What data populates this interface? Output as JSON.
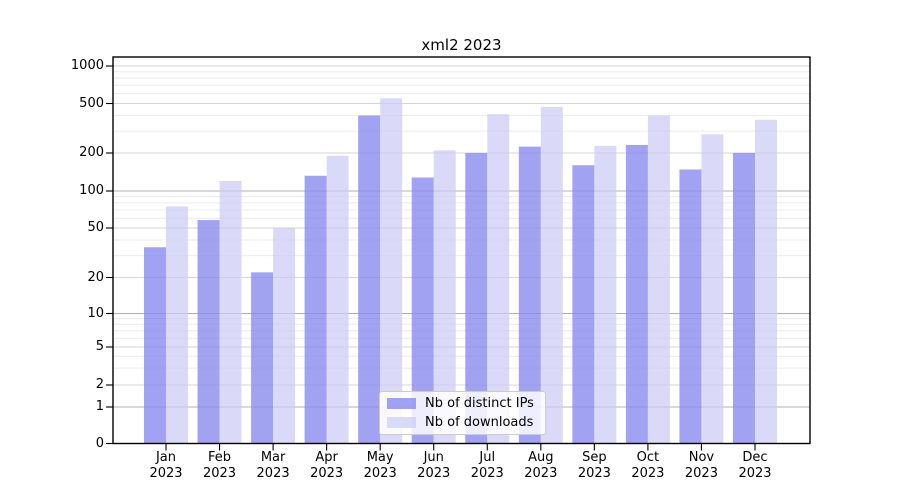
{
  "chart_data": {
    "type": "bar",
    "title": "xml2 2023",
    "categories": [
      "Jan",
      "Feb",
      "Mar",
      "Apr",
      "May",
      "Jun",
      "Jul",
      "Aug",
      "Sep",
      "Oct",
      "Nov",
      "Dec"
    ],
    "x_tick_second_line": "2023",
    "series": [
      {
        "name": "Nb of distinct IPs",
        "color": "#8888ee",
        "values": [
          35,
          58,
          22,
          132,
          400,
          128,
          200,
          225,
          160,
          232,
          148,
          200
        ]
      },
      {
        "name": "Nb of downloads",
        "color": "#ccccf5",
        "values": [
          75,
          120,
          50,
          190,
          550,
          210,
          410,
          470,
          228,
          400,
          283,
          370
        ]
      }
    ],
    "xlabel": "",
    "ylabel": "",
    "y_ticks": [
      1000,
      500,
      200,
      100,
      50,
      20,
      10,
      5,
      2,
      1,
      0
    ],
    "y_scale": "log (1-2-5 ticks), linear segment between 0 and 1",
    "ylim": [
      0,
      1100
    ],
    "grid": "on",
    "legend_position": "lower center inside plot"
  },
  "colors": {
    "background": "#ffffff",
    "frame": "#000000",
    "grid_minor": "#ececec",
    "grid_major": "#d6d6d6",
    "grid_power10": "#b0b0b0",
    "legend_border": "#cccccc"
  }
}
